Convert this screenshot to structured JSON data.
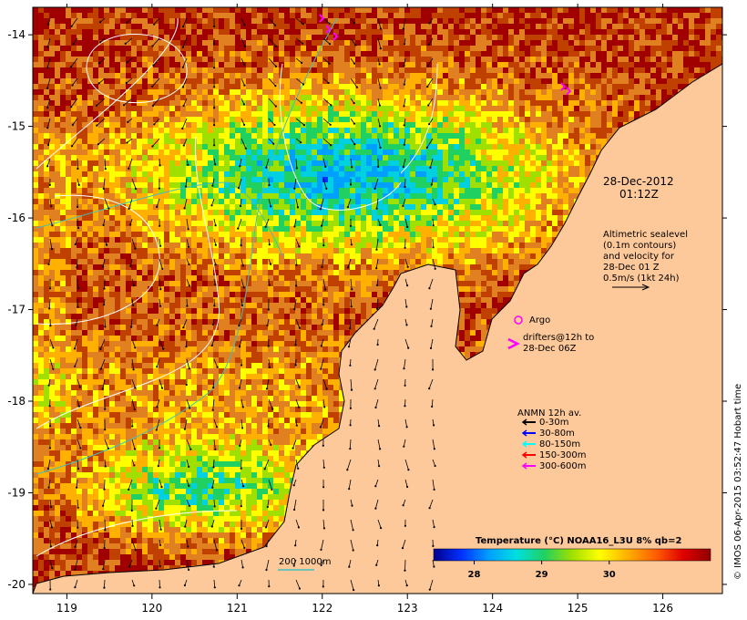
{
  "map": {
    "lon_range": [
      118.6,
      126.7
    ],
    "lat_range": [
      -20.1,
      -13.7
    ],
    "x_ticks": [
      119,
      120,
      121,
      122,
      123,
      124,
      125,
      126
    ],
    "y_ticks": [
      -14,
      -15,
      -16,
      -17,
      -18,
      -19,
      -20
    ],
    "x_tick_labels": [
      "119",
      "120",
      "121",
      "122",
      "123",
      "124",
      "125",
      "126"
    ],
    "y_tick_labels": [
      "-14",
      "-15",
      "-16",
      "-17",
      "-18",
      "-19",
      "-20"
    ],
    "colors": {
      "land": "#fec99a",
      "sst_warm": "#a00000",
      "sst_mid": "#e09030",
      "sst_cool": "#38d040",
      "sst_cold": "#00b0e0",
      "contour": "#ffffff",
      "isobath": "#40c0c0"
    }
  },
  "timestamp": {
    "line1": "28-Dec-2012",
    "line2": "01:12Z"
  },
  "altimetry": {
    "line1": "Altimetric sealevel",
    "line2": "(0.1m contours)",
    "line3": "and velocity for",
    "line4": "28-Dec 01 Z",
    "line5": "0.5m/s (1kt 24h)"
  },
  "argo": {
    "label": "Argo",
    "color": "#ff00ff"
  },
  "drifters": {
    "line1": "drifters@12h to",
    "line2": "28-Dec 06Z",
    "color": "#ff00ff"
  },
  "anmn": {
    "title": "ANMN 12h av.",
    "items": [
      {
        "label": "0-30m",
        "color": "#000000"
      },
      {
        "label": "30-80m",
        "color": "#0000ff"
      },
      {
        "label": "80-150m",
        "color": "#00ffff"
      },
      {
        "label": "150-300m",
        "color": "#ff0000"
      },
      {
        "label": "300-600m",
        "color": "#ff00ff"
      }
    ]
  },
  "isobath_legend": {
    "label": "200  1000m"
  },
  "colorbar": {
    "title": "Temperature (°C) NOAA16_L3U 8% qb=2",
    "range": [
      27.4,
      31.5
    ],
    "ticks": [
      28,
      29,
      30
    ],
    "tick_labels": [
      "28",
      "29",
      "30"
    ],
    "stops": [
      "#00008c",
      "#0030ff",
      "#00a0ff",
      "#00e0e0",
      "#20d060",
      "#a0e000",
      "#ffff00",
      "#ffb000",
      "#ff6000",
      "#e00000",
      "#900000"
    ]
  },
  "credit": "© IMOS 06-Apr-2015 03:52:47 Hobart time"
}
